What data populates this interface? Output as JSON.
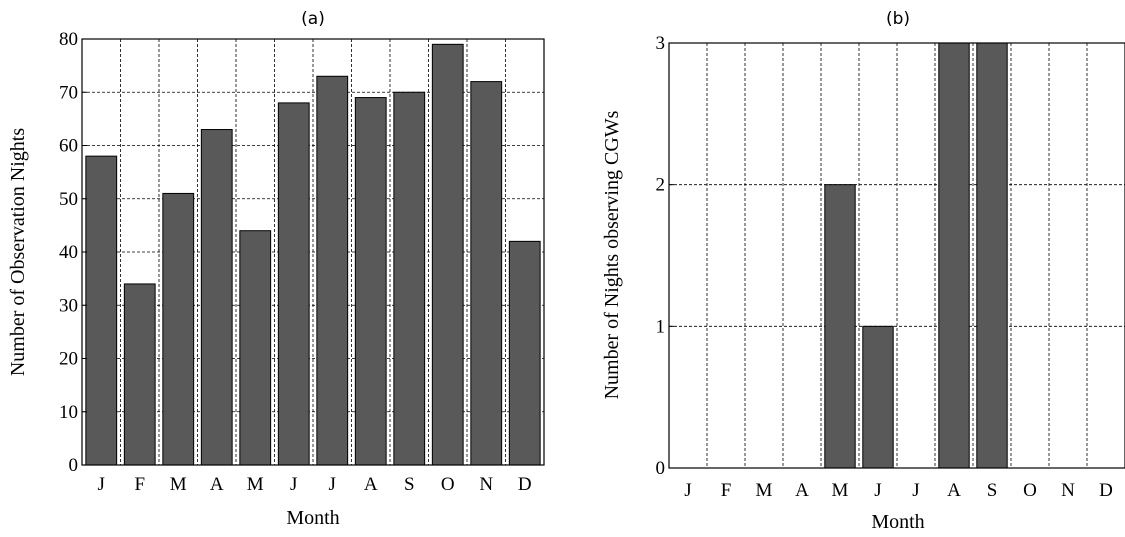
{
  "chart_data": [
    {
      "type": "bar",
      "title": "(a)",
      "xlabel": "Month",
      "ylabel": "Number of Observation Nights",
      "categories": [
        "J",
        "F",
        "M",
        "A",
        "M",
        "J",
        "J",
        "A",
        "S",
        "O",
        "N",
        "D"
      ],
      "values": [
        58,
        34,
        51,
        63,
        44,
        68,
        73,
        69,
        70,
        79,
        72,
        42
      ],
      "ylim": [
        0,
        80
      ],
      "yticks": [
        "0",
        "10",
        "20",
        "30",
        "40",
        "50",
        "60",
        "70",
        "80"
      ],
      "grid": true,
      "bar_color": "#595959"
    },
    {
      "type": "bar",
      "title": "(b)",
      "xlabel": "Month",
      "ylabel": "Number of Nights observing CGWs",
      "categories": [
        "J",
        "F",
        "M",
        "A",
        "M",
        "J",
        "J",
        "A",
        "S",
        "O",
        "N",
        "D"
      ],
      "values": [
        0,
        0,
        0,
        0,
        2,
        1,
        0,
        3,
        3,
        0,
        0,
        0
      ],
      "ylim": [
        0,
        3
      ],
      "yticks": [
        "0",
        "1",
        "2",
        "3"
      ],
      "grid": true,
      "bar_color": "#595959"
    }
  ]
}
